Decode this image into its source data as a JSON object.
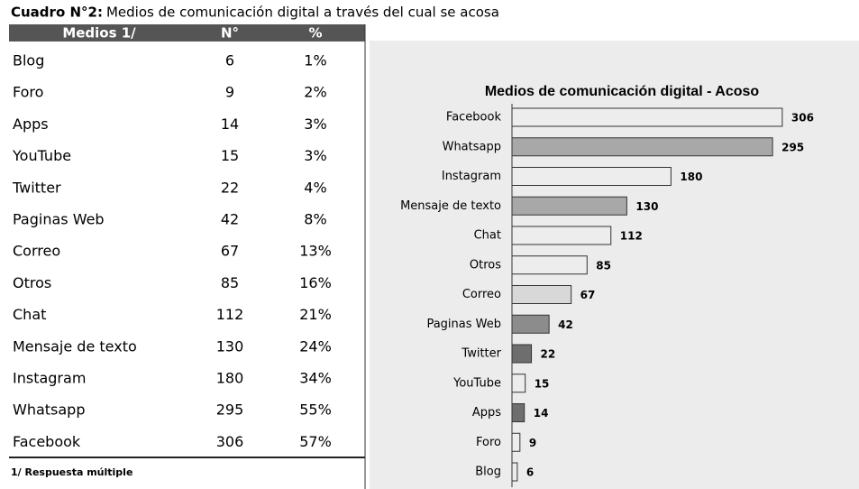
{
  "title": {
    "label": "Cuadro N°2:",
    "text": "Medios de comunicación digital a través del cual se acosa"
  },
  "table": {
    "header": [
      "Medios 1/",
      "N°",
      "%"
    ],
    "rows": [
      [
        "Blog",
        "6",
        "1%"
      ],
      [
        "Foro",
        "9",
        "2%"
      ],
      [
        "Apps",
        "14",
        "3%"
      ],
      [
        "YouTube",
        "15",
        "3%"
      ],
      [
        "Twitter",
        "22",
        "4%"
      ],
      [
        "Paginas Web",
        "42",
        "8%"
      ],
      [
        "Correo",
        "67",
        "13%"
      ],
      [
        "Otros",
        "85",
        "16%"
      ],
      [
        "Chat",
        "112",
        "21%"
      ],
      [
        "Mensaje de texto",
        "130",
        "24%"
      ],
      [
        "Instagram",
        "180",
        "34%"
      ],
      [
        "Whatsapp",
        "295",
        "55%"
      ],
      [
        "Facebook",
        "306",
        "57%"
      ]
    ],
    "footnote": "1/ Respuesta múltiple"
  },
  "chart_data": {
    "type": "hbar",
    "title": "Medios de comunicación digital - Acoso",
    "categories": [
      "Facebook",
      "Whatsapp",
      "Instagram",
      "Mensaje de texto",
      "Chat",
      "Otros",
      "Correo",
      "Paginas Web",
      "Twitter",
      "YouTube",
      "Apps",
      "Foro",
      "Blog"
    ],
    "values": [
      306,
      295,
      180,
      130,
      112,
      85,
      67,
      42,
      22,
      15,
      14,
      9,
      6
    ],
    "colors": [
      "#ededed",
      "#a8a8a8",
      "#ededed",
      "#a8a8a8",
      "#ededed",
      "#ededed",
      "#d8d8d8",
      "#8c8c8c",
      "#6e6e6e",
      "#ededed",
      "#6e6e6e",
      "#ededed",
      "#ededed"
    ]
  }
}
